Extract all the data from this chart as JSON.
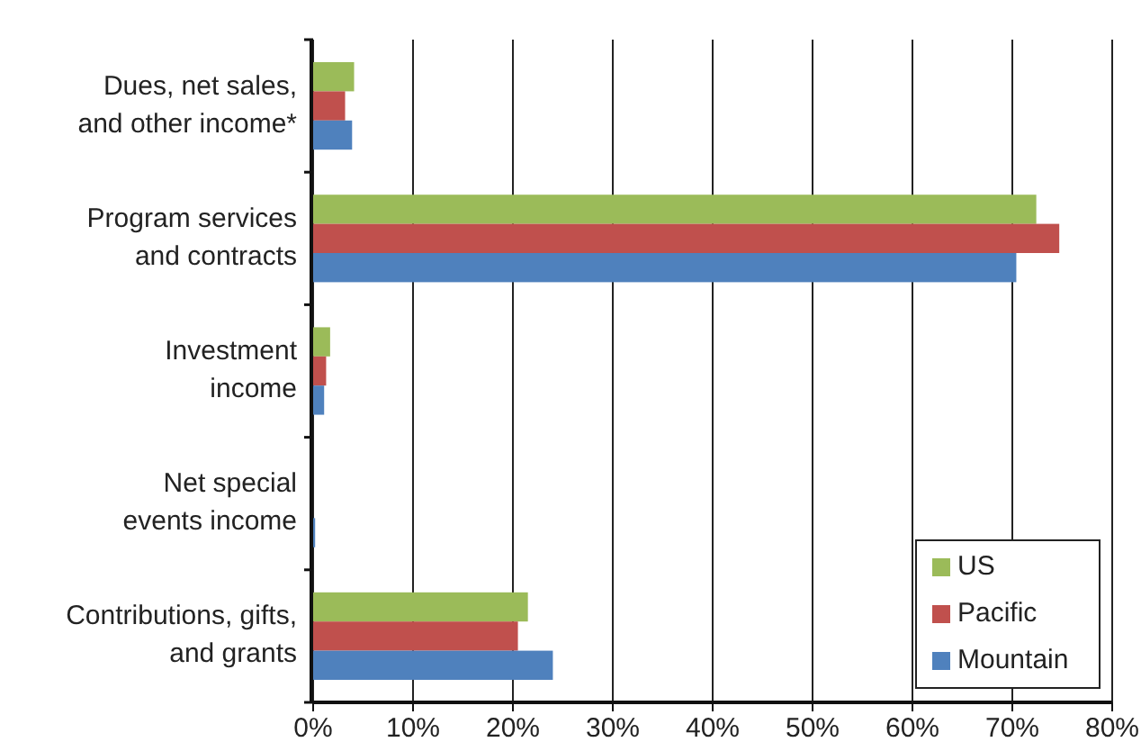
{
  "chart_data": {
    "type": "bar",
    "orientation": "horizontal",
    "categories": [
      "Dues, net sales,\nand other income*",
      "Program services\nand contracts",
      "Investment\nincome",
      "Net special\nevents income",
      "Contributions, gifts,\nand grants"
    ],
    "series": [
      {
        "name": "US",
        "color": "#9bbb59",
        "values": [
          4.1,
          72.4,
          1.7,
          0,
          21.5
        ]
      },
      {
        "name": "Pacific",
        "color": "#c0504d",
        "values": [
          3.2,
          74.7,
          1.3,
          0,
          20.5
        ]
      },
      {
        "name": "Mountain",
        "color": "#4f81bd",
        "values": [
          3.9,
          70.4,
          1.1,
          0.2,
          24.0
        ]
      }
    ],
    "xlim": [
      0,
      80
    ],
    "xticks": [
      {
        "value": 0,
        "label": "0%"
      },
      {
        "value": 10,
        "label": "10%"
      },
      {
        "value": 20,
        "label": "20%"
      },
      {
        "value": 30,
        "label": "30%"
      },
      {
        "value": 40,
        "label": "40%"
      },
      {
        "value": 50,
        "label": "50%"
      },
      {
        "value": 60,
        "label": "60%"
      },
      {
        "value": 70,
        "label": "70%"
      },
      {
        "value": 80,
        "label": "80%"
      }
    ],
    "grid": "x",
    "legend": "bottom right"
  }
}
